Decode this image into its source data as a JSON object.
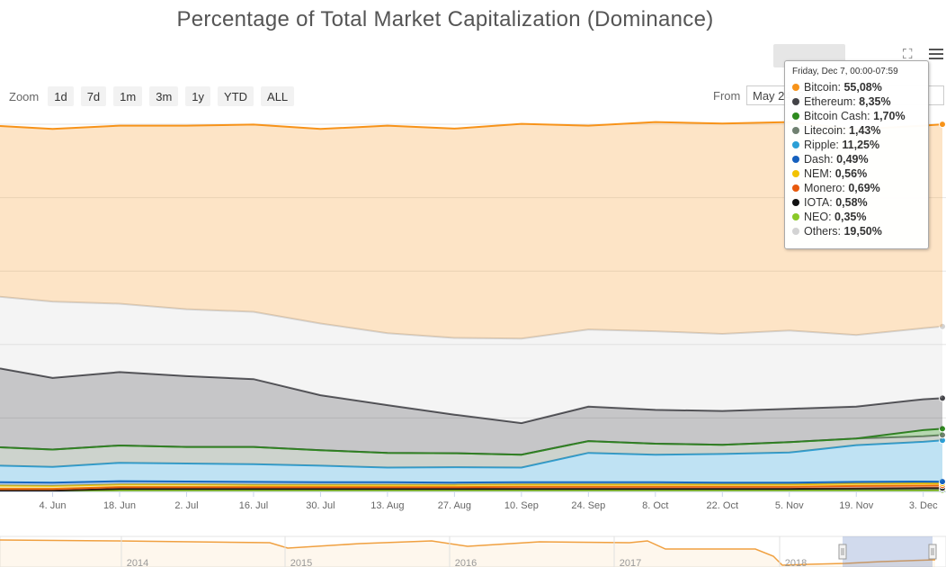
{
  "chart_data": {
    "type": "area",
    "title": "Percentage of Total Market Capitalization (Dominance)",
    "x_tick_labels": [
      "4. Jun",
      "18. Jun",
      "2. Jul",
      "16. Jul",
      "30. Jul",
      "13. Aug",
      "27. Aug",
      "10. Sep",
      "24. Sep",
      "8. Oct",
      "22. Oct",
      "5. Nov",
      "19. Nov",
      "3. Dec"
    ],
    "navigator_labels": [
      "2014",
      "2015",
      "2016",
      "2017",
      "2018"
    ],
    "x_range": [
      "2017-05-24",
      "2017-12-07"
    ],
    "ylim": [
      0,
      100
    ],
    "stacking": "normal",
    "grid": true,
    "legend": "none",
    "x": [
      "2017-05-24",
      "2017-06-04",
      "2017-06-18",
      "2017-07-02",
      "2017-07-16",
      "2017-07-30",
      "2017-08-13",
      "2017-08-27",
      "2017-09-10",
      "2017-09-24",
      "2017-10-08",
      "2017-10-22",
      "2017-11-05",
      "2017-11-19",
      "2017-12-03",
      "2017-12-07"
    ],
    "series": [
      {
        "name": "Bitcoin",
        "color": "#f7931a",
        "values": [
          46.5,
          47.0,
          48.5,
          50.0,
          51.0,
          53.0,
          56.5,
          57.0,
          58.5,
          55.5,
          57.0,
          57.3,
          56.8,
          56.0,
          55.2,
          55.08
        ]
      },
      {
        "name": "Ethereum",
        "color": "#434348",
        "values": [
          21.5,
          19.5,
          20.0,
          19.3,
          18.5,
          15.0,
          13.0,
          10.5,
          8.6,
          9.4,
          9.2,
          9.2,
          9.1,
          8.7,
          8.4,
          8.35
        ]
      },
      {
        "name": "Bitcoin Cash",
        "color": "#2e8b1e",
        "values": [
          0,
          0,
          0,
          0,
          0,
          0,
          0,
          0,
          0,
          0,
          0,
          0,
          0,
          0,
          1.7,
          1.7
        ]
      },
      {
        "name": "Litecoin",
        "color": "#708070",
        "values": [
          5.0,
          4.7,
          4.7,
          4.5,
          4.7,
          4.2,
          4.0,
          3.8,
          3.5,
          3.2,
          3.0,
          2.5,
          2.8,
          1.8,
          1.5,
          1.43
        ]
      },
      {
        "name": "Ripple",
        "color": "#2b9fd6",
        "values": [
          4.5,
          4.3,
          5.0,
          4.9,
          4.8,
          4.5,
          4.0,
          4.2,
          4.0,
          8.0,
          7.5,
          7.8,
          8.2,
          10.0,
          10.8,
          11.25
        ]
      },
      {
        "name": "Dash",
        "color": "#1560bd",
        "values": [
          0.9,
          0.9,
          0.9,
          0.8,
          0.8,
          0.7,
          0.7,
          0.6,
          0.6,
          0.6,
          0.6,
          0.5,
          0.5,
          0.5,
          0.5,
          0.49
        ]
      },
      {
        "name": "NEM",
        "color": "#f2c200",
        "values": [
          0.9,
          0.8,
          0.7,
          0.7,
          0.6,
          0.6,
          0.6,
          0.6,
          0.6,
          0.6,
          0.6,
          0.6,
          0.6,
          0.6,
          0.6,
          0.56
        ]
      },
      {
        "name": "Monero",
        "color": "#e8590c",
        "values": [
          0.5,
          0.5,
          0.5,
          0.5,
          0.5,
          0.5,
          0.5,
          0.5,
          0.6,
          0.6,
          0.6,
          0.6,
          0.6,
          0.7,
          0.7,
          0.69
        ]
      },
      {
        "name": "IOTA",
        "color": "#111111",
        "values": [
          0,
          0,
          0.4,
          0.4,
          0.4,
          0.4,
          0.4,
          0.4,
          0.4,
          0.4,
          0.4,
          0.4,
          0.4,
          0.5,
          0.6,
          0.58
        ]
      },
      {
        "name": "NEO",
        "color": "#8ac926",
        "values": [
          0.2,
          0.2,
          0.3,
          0.3,
          0.3,
          0.3,
          0.3,
          0.3,
          0.3,
          0.3,
          0.3,
          0.3,
          0.3,
          0.3,
          0.3,
          0.35
        ]
      },
      {
        "name": "Others",
        "color": "#d3d3d3",
        "values": [
          19.5,
          20.8,
          18.6,
          18.2,
          18.3,
          19.5,
          19.6,
          20.9,
          23.0,
          21.0,
          21.4,
          21.0,
          21.3,
          19.5,
          19.3,
          19.5
        ]
      }
    ],
    "tooltip": {
      "header": "Friday, Dec 7, 00:00-07:59",
      "items": [
        {
          "name": "Bitcoin",
          "value": "55,08%"
        },
        {
          "name": "Ethereum",
          "value": "8,35%"
        },
        {
          "name": "Bitcoin Cash",
          "value": "1,70%"
        },
        {
          "name": "Litecoin",
          "value": "1,43%"
        },
        {
          "name": "Ripple",
          "value": "11,25%"
        },
        {
          "name": "Dash",
          "value": "0,49%"
        },
        {
          "name": "NEM",
          "value": "0,56%"
        },
        {
          "name": "Monero",
          "value": "0,69%"
        },
        {
          "name": "IOTA",
          "value": "0,58%"
        },
        {
          "name": "NEO",
          "value": "0,35%"
        },
        {
          "name": "Others",
          "value": "19,50%"
        }
      ]
    }
  },
  "range_selector": {
    "zoom_label": "Zoom",
    "buttons": [
      "1d",
      "7d",
      "1m",
      "3m",
      "1y",
      "YTD",
      "ALL"
    ],
    "from_label": "From",
    "from_value": "May 24, 2017"
  },
  "toolbar": {
    "fullscreen_icon": "fullscreen-icon",
    "menu_icon": "hamburger-menu-icon"
  }
}
